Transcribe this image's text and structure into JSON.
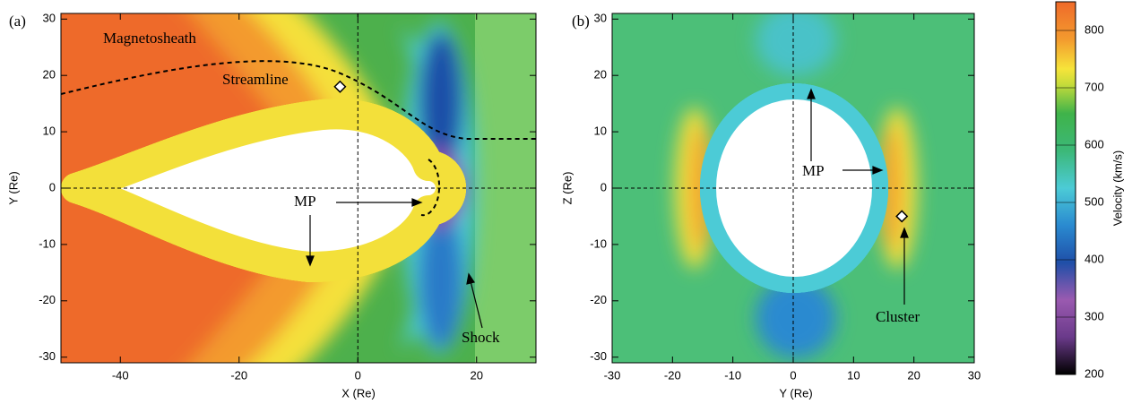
{
  "chart_data": [
    {
      "type": "contour",
      "panel_label": "(a)",
      "xlabel": "X (Re)",
      "ylabel": "Y (Re)",
      "xlim": [
        -50,
        30
      ],
      "ylim": [
        -31,
        31
      ],
      "xticks": [
        -40,
        -20,
        0,
        20
      ],
      "yticks": [
        -30,
        -20,
        -10,
        0,
        10,
        20,
        30
      ],
      "annotations": [
        "Magnetosheath",
        "Streamline",
        "MP",
        "Shock"
      ],
      "point": {
        "x": -3,
        "y": 18
      }
    },
    {
      "type": "contour",
      "panel_label": "(b)",
      "xlabel": "Y (Re)",
      "ylabel": "Z (Re)",
      "xlim": [
        -30,
        30
      ],
      "ylim": [
        -31,
        31
      ],
      "xticks": [
        -30,
        -20,
        -10,
        0,
        10,
        20,
        30
      ],
      "yticks": [
        -30,
        -20,
        -10,
        0,
        10,
        20,
        30
      ],
      "annotations": [
        "MP",
        "Cluster"
      ],
      "point": {
        "x": 18,
        "y": -5
      }
    },
    {
      "type": "colorbar",
      "ylabel": "Velocity (km/s)",
      "ylim": [
        200,
        850
      ],
      "yticks": [
        200,
        300,
        400,
        500,
        600,
        700,
        800
      ]
    }
  ]
}
